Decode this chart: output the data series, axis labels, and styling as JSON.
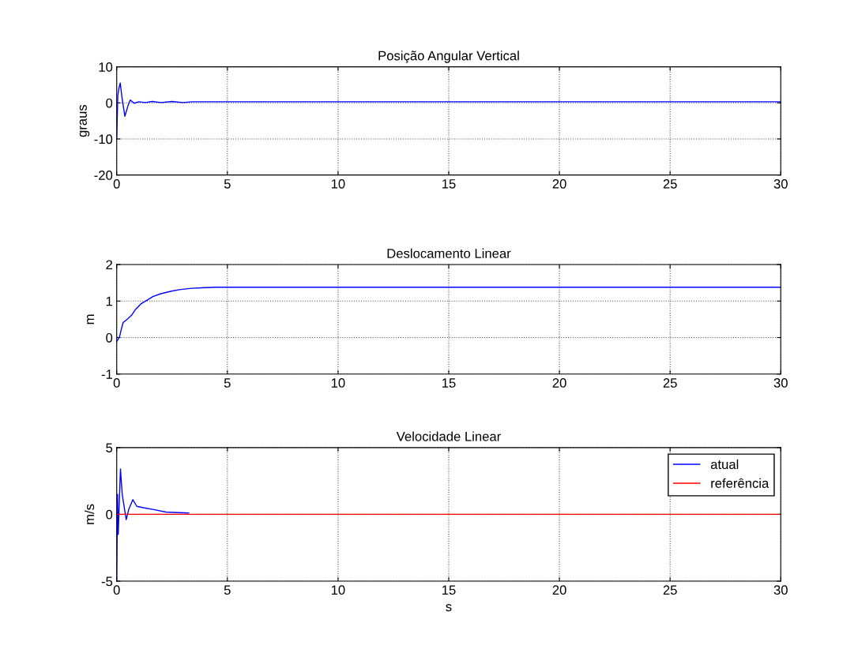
{
  "chart_data": [
    {
      "type": "line",
      "title": "Posição Angular Vertical",
      "ylabel": "graus",
      "xlim": [
        0,
        30
      ],
      "ylim": [
        -20,
        10
      ],
      "xticks": [
        0,
        5,
        10,
        15,
        20,
        25,
        30
      ],
      "yticks": [
        -20,
        -10,
        0,
        10
      ],
      "grid": true,
      "legend": false,
      "series": [
        {
          "color": "#0000ff",
          "x": [
            0,
            0.05,
            0.1,
            0.16,
            0.25,
            0.37,
            0.5,
            0.61,
            0.79,
            1.0,
            1.3,
            1.6,
            2.0,
            2.5,
            3.0,
            3.4,
            18.5,
            30
          ],
          "values": [
            -10,
            2,
            4,
            5.5,
            1,
            -3.7,
            -1,
            0.8,
            -0.1,
            0.3,
            0.1,
            0.4,
            0.1,
            0.4,
            0.1,
            0.3,
            0.3,
            0.3
          ]
        }
      ]
    },
    {
      "type": "line",
      "title": "Deslocamento Linear",
      "ylabel": "m",
      "xlim": [
        0,
        30
      ],
      "ylim": [
        -1,
        2
      ],
      "xticks": [
        0,
        5,
        10,
        15,
        20,
        25,
        30
      ],
      "yticks": [
        -1,
        0,
        1,
        2
      ],
      "grid": true,
      "legend": false,
      "series": [
        {
          "color": "#0000ff",
          "x": [
            0,
            0.13,
            0.19,
            0.29,
            0.49,
            0.67,
            0.85,
            1.09,
            1.39,
            1.63,
            1.99,
            2.47,
            2.83,
            3.37,
            4.5,
            30
          ],
          "values": [
            -0.11,
            0.02,
            0.18,
            0.41,
            0.51,
            0.61,
            0.77,
            0.92,
            1.03,
            1.12,
            1.2,
            1.27,
            1.31,
            1.35,
            1.38,
            1.38
          ]
        }
      ]
    },
    {
      "type": "line",
      "title": "Velocidade Linear",
      "xlabel": "s",
      "ylabel": "m/s",
      "xlim": [
        0,
        30
      ],
      "ylim": [
        -5,
        5
      ],
      "xticks": [
        0,
        5,
        10,
        15,
        20,
        25,
        30
      ],
      "yticks": [
        -5,
        0,
        5
      ],
      "grid": true,
      "legend": "top right",
      "series": [
        {
          "name": "atual",
          "color": "#0000ff",
          "x": [
            0,
            0.04,
            0.07,
            0.17,
            0.25,
            0.43,
            0.55,
            0.73,
            0.91,
            1.2,
            1.63,
            2.23,
            3.25
          ],
          "values": [
            -5,
            1.5,
            -1.5,
            3.4,
            1.5,
            -0.4,
            0.4,
            1.1,
            0.6,
            0.5,
            0.37,
            0.17,
            0.1
          ]
        },
        {
          "name": "referência",
          "color": "#ff0000",
          "x": [
            0,
            30
          ],
          "values": [
            0,
            0
          ]
        }
      ]
    }
  ]
}
